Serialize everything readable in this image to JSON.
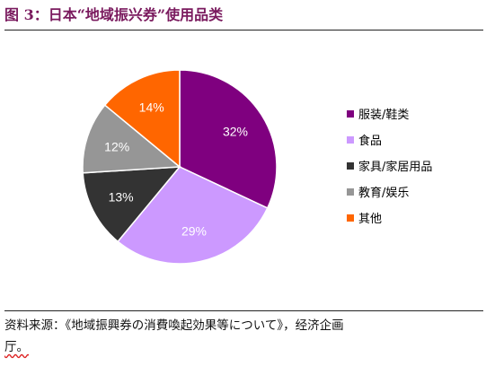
{
  "figure": {
    "title": "图 3：日本“地域振兴券”使用品类",
    "source_line1": "资料来源：《地域振興券の消費喚起効果等について》，经济企画",
    "source_line2": "厅。"
  },
  "chart_data": {
    "type": "pie",
    "title": "",
    "labels": [
      "服装/鞋类",
      "食品",
      "家具/家居用品",
      "教育/娱乐",
      "其他"
    ],
    "values": [
      32,
      29,
      13,
      12,
      14
    ],
    "value_labels": [
      "32%",
      "29%",
      "13%",
      "12%",
      "14%"
    ],
    "colors": [
      "#7f007f",
      "#cc99ff",
      "#333333",
      "#969696",
      "#ff6600"
    ],
    "label_colors": [
      "#ffffff",
      "#ffffff",
      "#ffffff",
      "#ffffff",
      "#ffffff"
    ],
    "start_angle_deg": 0,
    "direction": "clockwise",
    "legend_position": "right"
  }
}
